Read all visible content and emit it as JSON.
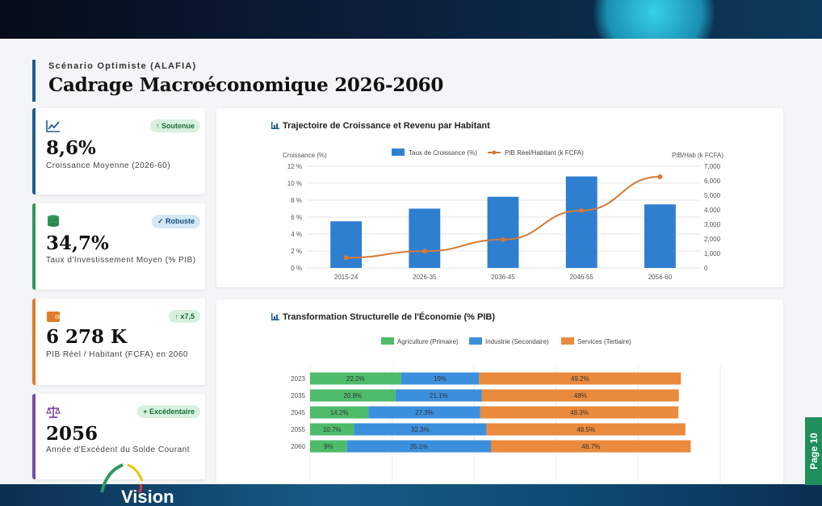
{
  "header": {
    "subtitle": "Scénario Optimiste (ALAFIA)",
    "title": "Cadrage Macroéconomique 2026-2060"
  },
  "kpis": [
    {
      "icon": "trend-chart-icon",
      "badge": "↑ Soutenue",
      "value": "8,6%",
      "label": "Croissance Moyenne (2026-60)",
      "accent": "#1d5d93",
      "badge_bg": "#d7f0df",
      "badge_fg": "#1e6b3a"
    },
    {
      "icon": "coins-icon",
      "badge": "✓ Robuste",
      "value": "34,7%",
      "label": "Taux d'Investissement Moyen (% PIB)",
      "accent": "#2e9a5a",
      "badge_bg": "#d3e7f5",
      "badge_fg": "#1b4f7a"
    },
    {
      "icon": "wallet-icon",
      "badge": "↑ x7,5",
      "value": "6 278 K",
      "label": "PIB Réel / Habitant (FCFA) en 2060",
      "accent": "#e07b2a",
      "badge_bg": "#d7f0df",
      "badge_fg": "#1e6b3a"
    },
    {
      "icon": "balance-scale-icon",
      "badge": "+ Excédentaire",
      "value": "2056",
      "label": "Année d'Excédent du Solde Courant",
      "accent": "#7a4aa8",
      "badge_bg": "#d7f0df",
      "badge_fg": "#1e6b3a"
    }
  ],
  "page_label": "Page 10",
  "logo_text": "Vision",
  "chart_data": [
    {
      "type": "bar",
      "title": "Trajectoire de Croissance et Revenu par Habitant",
      "categories": [
        "2015-24",
        "2026-35",
        "2036-45",
        "2046-55",
        "2056-60"
      ],
      "ylabel": "Croissance (%)",
      "y2label": "PIB/Hab (k FCFA)",
      "ylim": [
        0,
        12
      ],
      "y2lim": [
        0,
        7000
      ],
      "yticks": [
        "0 %",
        "2 %",
        "4 %",
        "6 %",
        "8 %",
        "10 %",
        "12 %"
      ],
      "y2ticks": [
        "0",
        "1,000",
        "2,000",
        "3,000",
        "4,000",
        "5,000",
        "6,000",
        "7,000"
      ],
      "legend_position": "top",
      "series": [
        {
          "name": "Taux de Croissance (%)",
          "kind": "bar",
          "axis": "left",
          "color": "#2f7fd1",
          "values": [
            5.5,
            7.0,
            8.4,
            10.8,
            7.5
          ]
        },
        {
          "name": "PIB Réel/Habitant (k FCFA)",
          "kind": "line",
          "axis": "right",
          "color": "#d47a35",
          "values": [
            700,
            1150,
            1950,
            3950,
            6278
          ]
        }
      ]
    },
    {
      "type": "bar",
      "orientation": "horizontal-stacked",
      "title": "Transformation Structurelle de l'Économie (% PIB)",
      "categories": [
        "2023",
        "2035",
        "2045",
        "2055",
        "2060"
      ],
      "xlim": [
        0,
        100
      ],
      "xticks": [
        "0 %",
        "20 %",
        "40 %",
        "60 %",
        "80 %",
        "100 %"
      ],
      "legend_position": "top",
      "series": [
        {
          "name": "Agriculture (Primaire)",
          "color": "#4dbb6a",
          "values": [
            22.2,
            20.8,
            14.2,
            10.7,
            9
          ],
          "labels": [
            "22.2%",
            "20.8%",
            "14.2%",
            "10.7%",
            "9%"
          ]
        },
        {
          "name": "Industrie (Secondaire)",
          "color": "#3c8fdc",
          "values": [
            19,
            21.1,
            27.3,
            32.3,
            35.1
          ],
          "labels": [
            "19%",
            "21.1%",
            "27.3%",
            "32.3%",
            "35.1%"
          ]
        },
        {
          "name": "Services (Tertiaire)",
          "color": "#ea8a3c",
          "values": [
            49.2,
            48,
            48.3,
            48.5,
            48.7
          ],
          "labels": [
            "49.2%",
            "48%",
            "48.3%",
            "48.5%",
            "48.7%"
          ]
        }
      ]
    }
  ]
}
